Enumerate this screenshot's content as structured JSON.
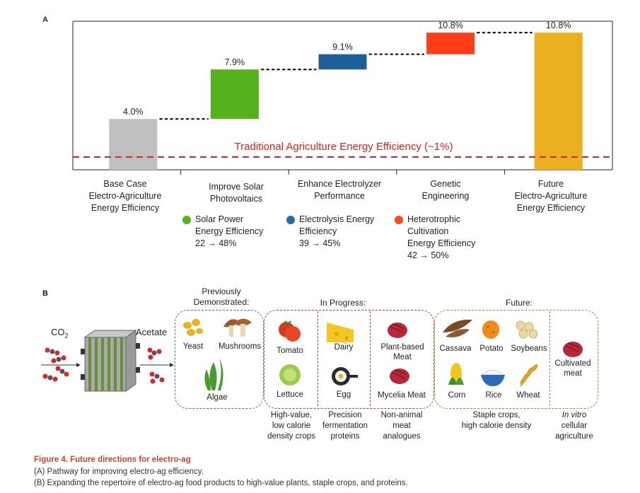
{
  "panel_a": {
    "letter": "A",
    "baseline_label": "Traditional Agriculture Energy Efficiency (~1%)",
    "chart_data": {
      "type": "bar",
      "subtype": "waterfall",
      "categories": [
        "Base Case Electro-Agriculture Energy Efficiency",
        "Improve Solar Photovoltaics",
        "Enhance Electrolyzer Performance",
        "Genetic Engineering",
        "Future Electro-Agriculture Energy Efficiency"
      ],
      "values": [
        4.0,
        7.9,
        9.1,
        10.8,
        10.8
      ],
      "value_labels": [
        "4.0%",
        "7.9%",
        "9.1%",
        "10.8%",
        "10.8%"
      ],
      "bar_colors": [
        "#bfbfbf",
        "#55b21e",
        "#1e5f96",
        "#ff3d17",
        "#eab020"
      ],
      "reference_line": 1.0,
      "ylim": [
        0,
        11.7
      ],
      "grid": false
    },
    "categories": [
      {
        "lines": [
          "Base Case",
          "Electro-Agriculture",
          "Energy Efficiency"
        ]
      },
      {
        "lines": [
          "Improve Solar",
          "Photovoltaics"
        ]
      },
      {
        "lines": [
          "Enhance Electrolyzer",
          "Performance"
        ]
      },
      {
        "lines": [
          "Genetic",
          "Engineering"
        ]
      },
      {
        "lines": [
          "Future",
          "Electro-Agriculture",
          "Energy Efficiency"
        ]
      }
    ],
    "legends": [
      {
        "color": "#55b21e",
        "lines": [
          "Solar Power",
          "Energy Efficiency",
          "22 → 48%"
        ]
      },
      {
        "color": "#1e6fa8",
        "lines": [
          "Electrolysis Energy",
          "Efficiency",
          "39 → 45%"
        ]
      },
      {
        "color": "#ff4a1c",
        "lines": [
          "Heterotrophic",
          "Cultivation",
          "Energy Efficiency",
          "42 → 50%"
        ]
      }
    ]
  },
  "panel_b": {
    "letter": "B",
    "co2": "CO",
    "co2_sub": "2",
    "acetate": "Acetate",
    "group_previous": [
      "Previously",
      "Demonstrated:"
    ],
    "group_progress": "In Progress:",
    "group_future": "Future:",
    "foods": {
      "yeast": "Yeast",
      "mushrooms": "Mushrooms",
      "algae": "Algae",
      "tomato": "Tomato",
      "lettuce": "Lettuce",
      "dairy": "Dairy",
      "egg": "Egg",
      "plant_meat": [
        "Plant-based",
        "Meat"
      ],
      "mycelia_meat": "Mycelia Meat",
      "cassava": "Cassava",
      "potato": "Potato",
      "soybeans": "Soybeans",
      "corn": "Corn",
      "rice": "Rice",
      "wheat": "Wheat",
      "cultivated_meat": [
        "Cultivated",
        "meat"
      ]
    },
    "captions": [
      [
        "High-value,",
        "low calorie",
        "density crops"
      ],
      [
        "Precision",
        "fermentation",
        "proteins"
      ],
      [
        "Non-animal",
        "meat",
        "analogues"
      ],
      [
        "Staple crops,",
        "high calorie density"
      ],
      [
        "In vitro",
        "cellular",
        "agriculture"
      ]
    ]
  },
  "figure": {
    "title": "Figure 4.  Future directions for electro-ag",
    "lines": [
      "(A) Pathway for improving electro-ag efficiency.",
      "(B) Expanding the repertoire of electro-ag food products to high-value plants, staple crops, and proteins."
    ]
  }
}
